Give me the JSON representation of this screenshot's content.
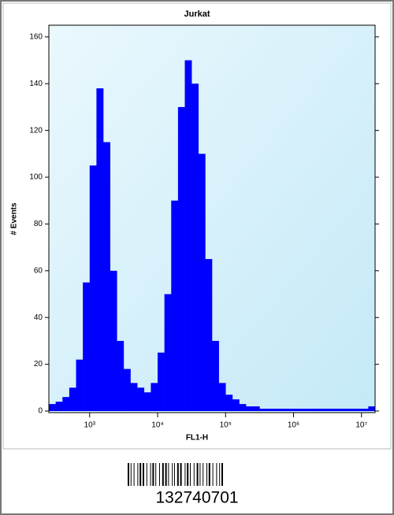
{
  "chart_data": {
    "type": "histogram",
    "title": "Jurkat",
    "x_label": "FL1-H",
    "y_label": "# Events",
    "bins": [
      251,
      316,
      398,
      501,
      631,
      794,
      1000,
      1259,
      1585,
      1995,
      2512,
      3162,
      3981,
      5012,
      6310,
      7943,
      10000,
      12589,
      15849,
      19953,
      25119,
      31623,
      39811,
      50119,
      63096,
      79433,
      100000,
      125893,
      158489,
      199526,
      251189,
      316228,
      398107,
      501187,
      630957,
      794328,
      1000000,
      1258925,
      1584893,
      1995262,
      2511886,
      3162278,
      3981072,
      5011872,
      6309573,
      7943282,
      10000000,
      12589254,
      15848932
    ],
    "values": [
      3,
      4,
      6,
      10,
      22,
      55,
      105,
      138,
      115,
      60,
      30,
      18,
      12,
      10,
      8,
      12,
      25,
      50,
      90,
      130,
      150,
      140,
      110,
      65,
      30,
      12,
      7,
      5,
      3,
      2,
      2,
      1,
      1,
      1,
      1,
      1,
      1,
      1,
      1,
      1,
      1,
      1,
      1,
      1,
      1,
      1,
      1,
      2
    ],
    "color": "#0000ff",
    "xlim": [
      251,
      15848932
    ],
    "x_log": true,
    "xticks": [
      {
        "value": 1000,
        "label": "10³"
      },
      {
        "value": 10000,
        "label": "10⁴"
      },
      {
        "value": 100000,
        "label": "10⁵"
      },
      {
        "value": 1000000,
        "label": "10⁶"
      },
      {
        "value": 10000000,
        "label": "10⁷"
      }
    ],
    "ylim": [
      0,
      165
    ],
    "yticks": [
      0,
      20,
      40,
      60,
      80,
      100,
      120,
      140,
      160
    ]
  },
  "barcode_number": "132740701"
}
